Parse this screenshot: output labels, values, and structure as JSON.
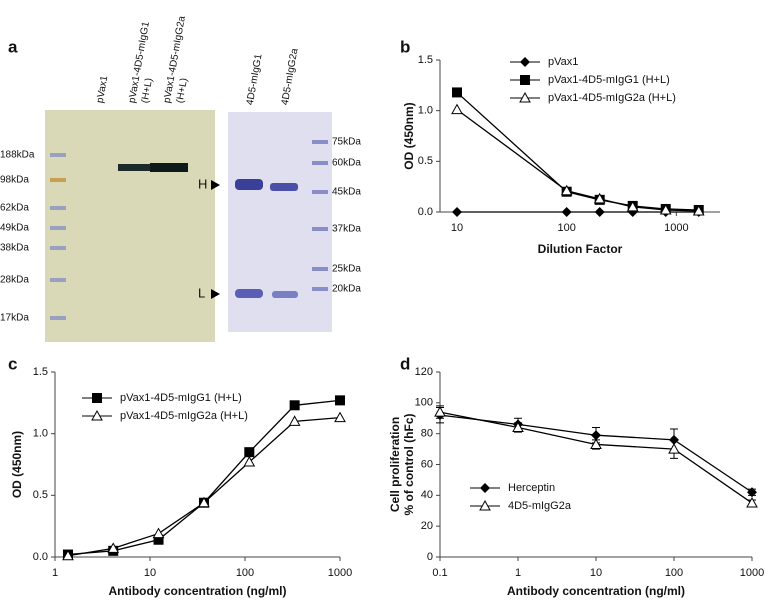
{
  "panels": [
    "a",
    "b",
    "c",
    "d"
  ],
  "gel": {
    "lanes_left": [
      [
        "pVax1"
      ],
      [
        "pVax1-4D5-mIgG1",
        "(H+L)"
      ],
      [
        "pVax1-4D5-mIgG2a",
        "(H+L)"
      ]
    ],
    "markers_left": [
      "188kDa",
      "98kDa",
      "62kDa",
      "49kDa",
      "38kDa",
      "28kDa",
      "17kDa"
    ],
    "lanes_right": [
      "4D5-mIgG1",
      "4D5-mIgG2a"
    ],
    "markers_right": [
      "75kDa",
      "60kDa",
      "45kDa",
      "37kDa",
      "25kDa",
      "20kDa"
    ],
    "band_labels": [
      "H",
      "L"
    ]
  },
  "chart_data": [
    {
      "type": "line",
      "xscale": "log",
      "xlabel": "Dilution Factor",
      "ylabel": "OD (450nm)",
      "legend": "upper right",
      "x": [
        10,
        100,
        200,
        400,
        800,
        1600
      ],
      "xlim": [
        7,
        2500
      ],
      "xticks": [
        10,
        100,
        1000
      ],
      "ylim": [
        0,
        1.5
      ],
      "yticks": [
        {
          "value": 0,
          "label": "0.0"
        },
        {
          "value": 0.5,
          "label": "0.5"
        },
        {
          "value": 1,
          "label": "1.0"
        },
        {
          "value": 1.5,
          "label": "1.5"
        }
      ],
      "series": [
        {
          "name": "pVax1",
          "color": "#000000",
          "marker": "diamond",
          "values": [
            0,
            0,
            0,
            0,
            0,
            0
          ]
        },
        {
          "name": "pVax1-4D5-mIgG1 (H+L)",
          "color": "#000000",
          "marker": "square",
          "values": [
            1.18,
            0.2,
            0.12,
            0.06,
            0.03,
            0.02
          ]
        },
        {
          "name": "pVax1-4D5-mIgG2a (H+L)",
          "color": "#000000",
          "marker": "triangle",
          "values": [
            1.01,
            0.21,
            0.13,
            0.05,
            0.02,
            0.01
          ]
        }
      ]
    },
    {
      "type": "line",
      "xscale": "log",
      "xlabel": "Antibody concentration (ng/ml)",
      "ylabel": "OD (450nm)",
      "legend": "upper left",
      "x": [
        1.37,
        4.1,
        12.3,
        37,
        111,
        333,
        1000
      ],
      "xlim": [
        1,
        1000
      ],
      "xticks": [
        1,
        10,
        100,
        1000
      ],
      "ylim": [
        0,
        1.5
      ],
      "yticks": [
        {
          "value": 0,
          "label": "0.0"
        },
        {
          "value": 0.5,
          "label": "0.5"
        },
        {
          "value": 1,
          "label": "1.0"
        },
        {
          "value": 1.5,
          "label": "1.5"
        }
      ],
      "series": [
        {
          "name": "pVax1-4D5-mIgG1  (H+L)",
          "color": "#000000",
          "marker": "square",
          "values": [
            0.02,
            0.05,
            0.14,
            0.44,
            0.85,
            1.23,
            1.27
          ]
        },
        {
          "name": "pVax1-4D5-mIgG2a  (H+L)",
          "color": "#000000",
          "marker": "triangle",
          "values": [
            0.01,
            0.07,
            0.19,
            0.44,
            0.77,
            1.1,
            1.13
          ]
        }
      ]
    },
    {
      "type": "line",
      "xscale": "log",
      "xlabel": "Antibody concentration (ng/ml)",
      "ylabel": [
        "Cell proliferation",
        "% of control (hFc)"
      ],
      "legend": "lower left",
      "x": [
        0.1,
        1,
        10,
        100,
        1000
      ],
      "xlim": [
        0.1,
        1000
      ],
      "xticks": [
        0.1,
        1,
        10,
        100,
        1000
      ],
      "ylim": [
        0,
        120
      ],
      "yticks": [
        0,
        20,
        40,
        60,
        80,
        100,
        120
      ],
      "series": [
        {
          "name": "Herceptin",
          "color": "#000000",
          "marker": "diamond",
          "values": [
            92,
            86,
            79,
            76,
            42
          ],
          "errors": [
            5,
            4,
            5,
            7,
            2
          ]
        },
        {
          "name": "4D5-mIgG2a",
          "color": "#000000",
          "marker": "triangle",
          "values": [
            94,
            84,
            73,
            70,
            35
          ],
          "errors": [
            4,
            3,
            3,
            6,
            2
          ]
        }
      ]
    }
  ]
}
